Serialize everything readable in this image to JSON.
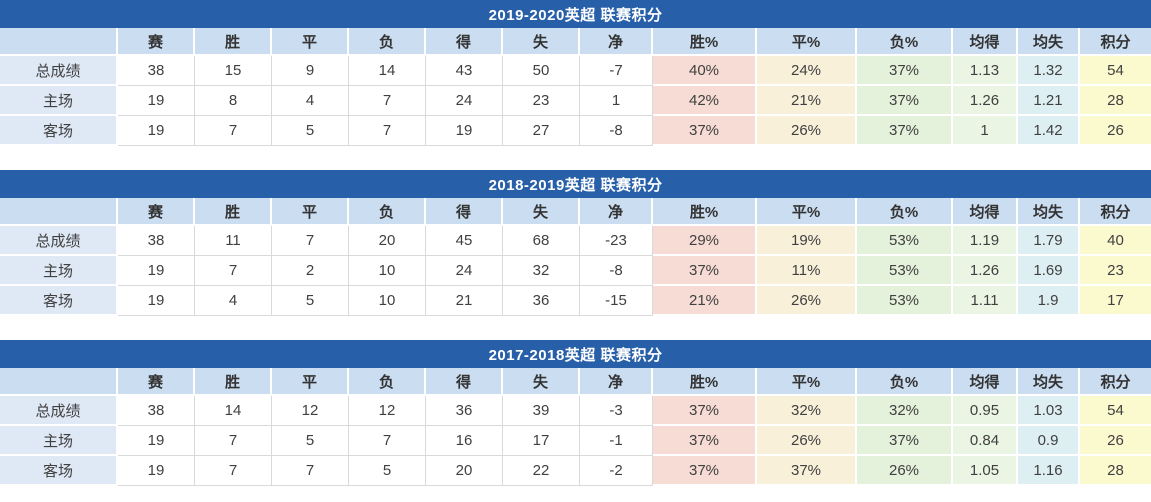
{
  "palette": {
    "title_bar": "#275FA8",
    "header_bg": "#CADDF1",
    "label_bg": "#DFE8F5",
    "win_pct_bg": "#F6DCD4",
    "draw_pct_bg": "#F9F0DA",
    "loss_pct_bg": "#E4F1DB",
    "avg_for_bg": "#EAF5E3",
    "avg_against_bg": "#DEEFF3",
    "points_bg": "#FBFACF",
    "grid_line": "#D9D9D9"
  },
  "columns": [
    {
      "key": "row-label",
      "label": ""
    },
    {
      "key": "matches",
      "label": "赛"
    },
    {
      "key": "wins",
      "label": "胜"
    },
    {
      "key": "draws",
      "label": "平"
    },
    {
      "key": "losses",
      "label": "负"
    },
    {
      "key": "goals-for",
      "label": "得"
    },
    {
      "key": "goals-against",
      "label": "失"
    },
    {
      "key": "goal-diff",
      "label": "净"
    },
    {
      "key": "win-pct",
      "label": "胜%"
    },
    {
      "key": "draw-pct",
      "label": "平%"
    },
    {
      "key": "loss-pct",
      "label": "负%"
    },
    {
      "key": "avg-for",
      "label": "均得"
    },
    {
      "key": "avg-against",
      "label": "均失"
    },
    {
      "key": "points",
      "label": "积分"
    }
  ],
  "tables": [
    {
      "title": "2019-2020英超 联赛积分",
      "rows": [
        {
          "label": "总成绩",
          "values": [
            "38",
            "15",
            "9",
            "14",
            "43",
            "50",
            "-7",
            "40%",
            "24%",
            "37%",
            "1.13",
            "1.32",
            "54"
          ]
        },
        {
          "label": "主场",
          "values": [
            "19",
            "8",
            "4",
            "7",
            "24",
            "23",
            "1",
            "42%",
            "21%",
            "37%",
            "1.26",
            "1.21",
            "28"
          ]
        },
        {
          "label": "客场",
          "values": [
            "19",
            "7",
            "5",
            "7",
            "19",
            "27",
            "-8",
            "37%",
            "26%",
            "37%",
            "1",
            "1.42",
            "26"
          ]
        }
      ]
    },
    {
      "title": "2018-2019英超 联赛积分",
      "rows": [
        {
          "label": "总成绩",
          "values": [
            "38",
            "11",
            "7",
            "20",
            "45",
            "68",
            "-23",
            "29%",
            "19%",
            "53%",
            "1.19",
            "1.79",
            "40"
          ]
        },
        {
          "label": "主场",
          "values": [
            "19",
            "7",
            "2",
            "10",
            "24",
            "32",
            "-8",
            "37%",
            "11%",
            "53%",
            "1.26",
            "1.69",
            "23"
          ]
        },
        {
          "label": "客场",
          "values": [
            "19",
            "4",
            "5",
            "10",
            "21",
            "36",
            "-15",
            "21%",
            "26%",
            "53%",
            "1.11",
            "1.9",
            "17"
          ]
        }
      ]
    },
    {
      "title": "2017-2018英超 联赛积分",
      "rows": [
        {
          "label": "总成绩",
          "values": [
            "38",
            "14",
            "12",
            "12",
            "36",
            "39",
            "-3",
            "37%",
            "32%",
            "32%",
            "0.95",
            "1.03",
            "54"
          ]
        },
        {
          "label": "主场",
          "values": [
            "19",
            "7",
            "5",
            "7",
            "16",
            "17",
            "-1",
            "37%",
            "26%",
            "37%",
            "0.84",
            "0.9",
            "26"
          ]
        },
        {
          "label": "客场",
          "values": [
            "19",
            "7",
            "7",
            "5",
            "20",
            "22",
            "-2",
            "37%",
            "37%",
            "26%",
            "1.05",
            "1.16",
            "28"
          ]
        }
      ]
    }
  ]
}
